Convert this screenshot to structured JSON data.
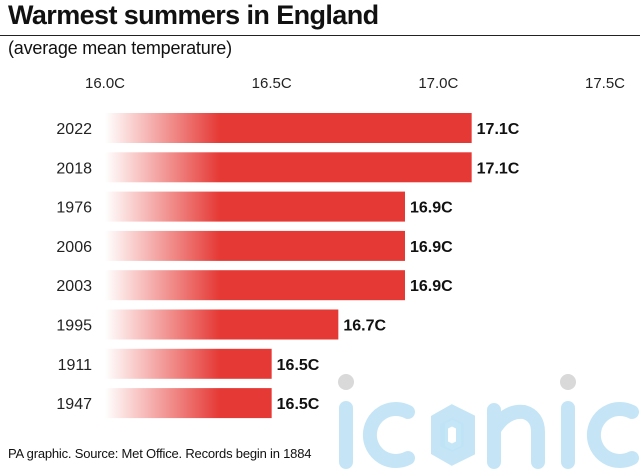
{
  "title": "Warmest summers in England",
  "subtitle": "(average mean temperature)",
  "footer": "PA graphic. Source: Met Office. Records begin in 1884",
  "colors": {
    "bar": "#e53935",
    "bar_fade": "#ffffff"
  },
  "chart_data": {
    "type": "bar",
    "orientation": "horizontal",
    "title": "Warmest summers in England",
    "subtitle": "(average mean temperature)",
    "categories": [
      "2022",
      "2018",
      "1976",
      "2006",
      "2003",
      "1995",
      "1911",
      "1947"
    ],
    "values": [
      17.1,
      17.1,
      16.9,
      16.9,
      16.9,
      16.7,
      16.5,
      16.5
    ],
    "value_labels": [
      "17.1C",
      "17.1C",
      "16.9C",
      "16.9C",
      "16.9C",
      "16.7C",
      "16.5C",
      "16.5C"
    ],
    "xlim": [
      16.0,
      17.5
    ],
    "xticks": [
      16.0,
      16.5,
      17.0,
      17.5
    ],
    "xtick_labels": [
      "16.0C",
      "16.5C",
      "17.0C",
      "17.5C"
    ],
    "axis_position": "top",
    "grid": false,
    "legend": false
  }
}
